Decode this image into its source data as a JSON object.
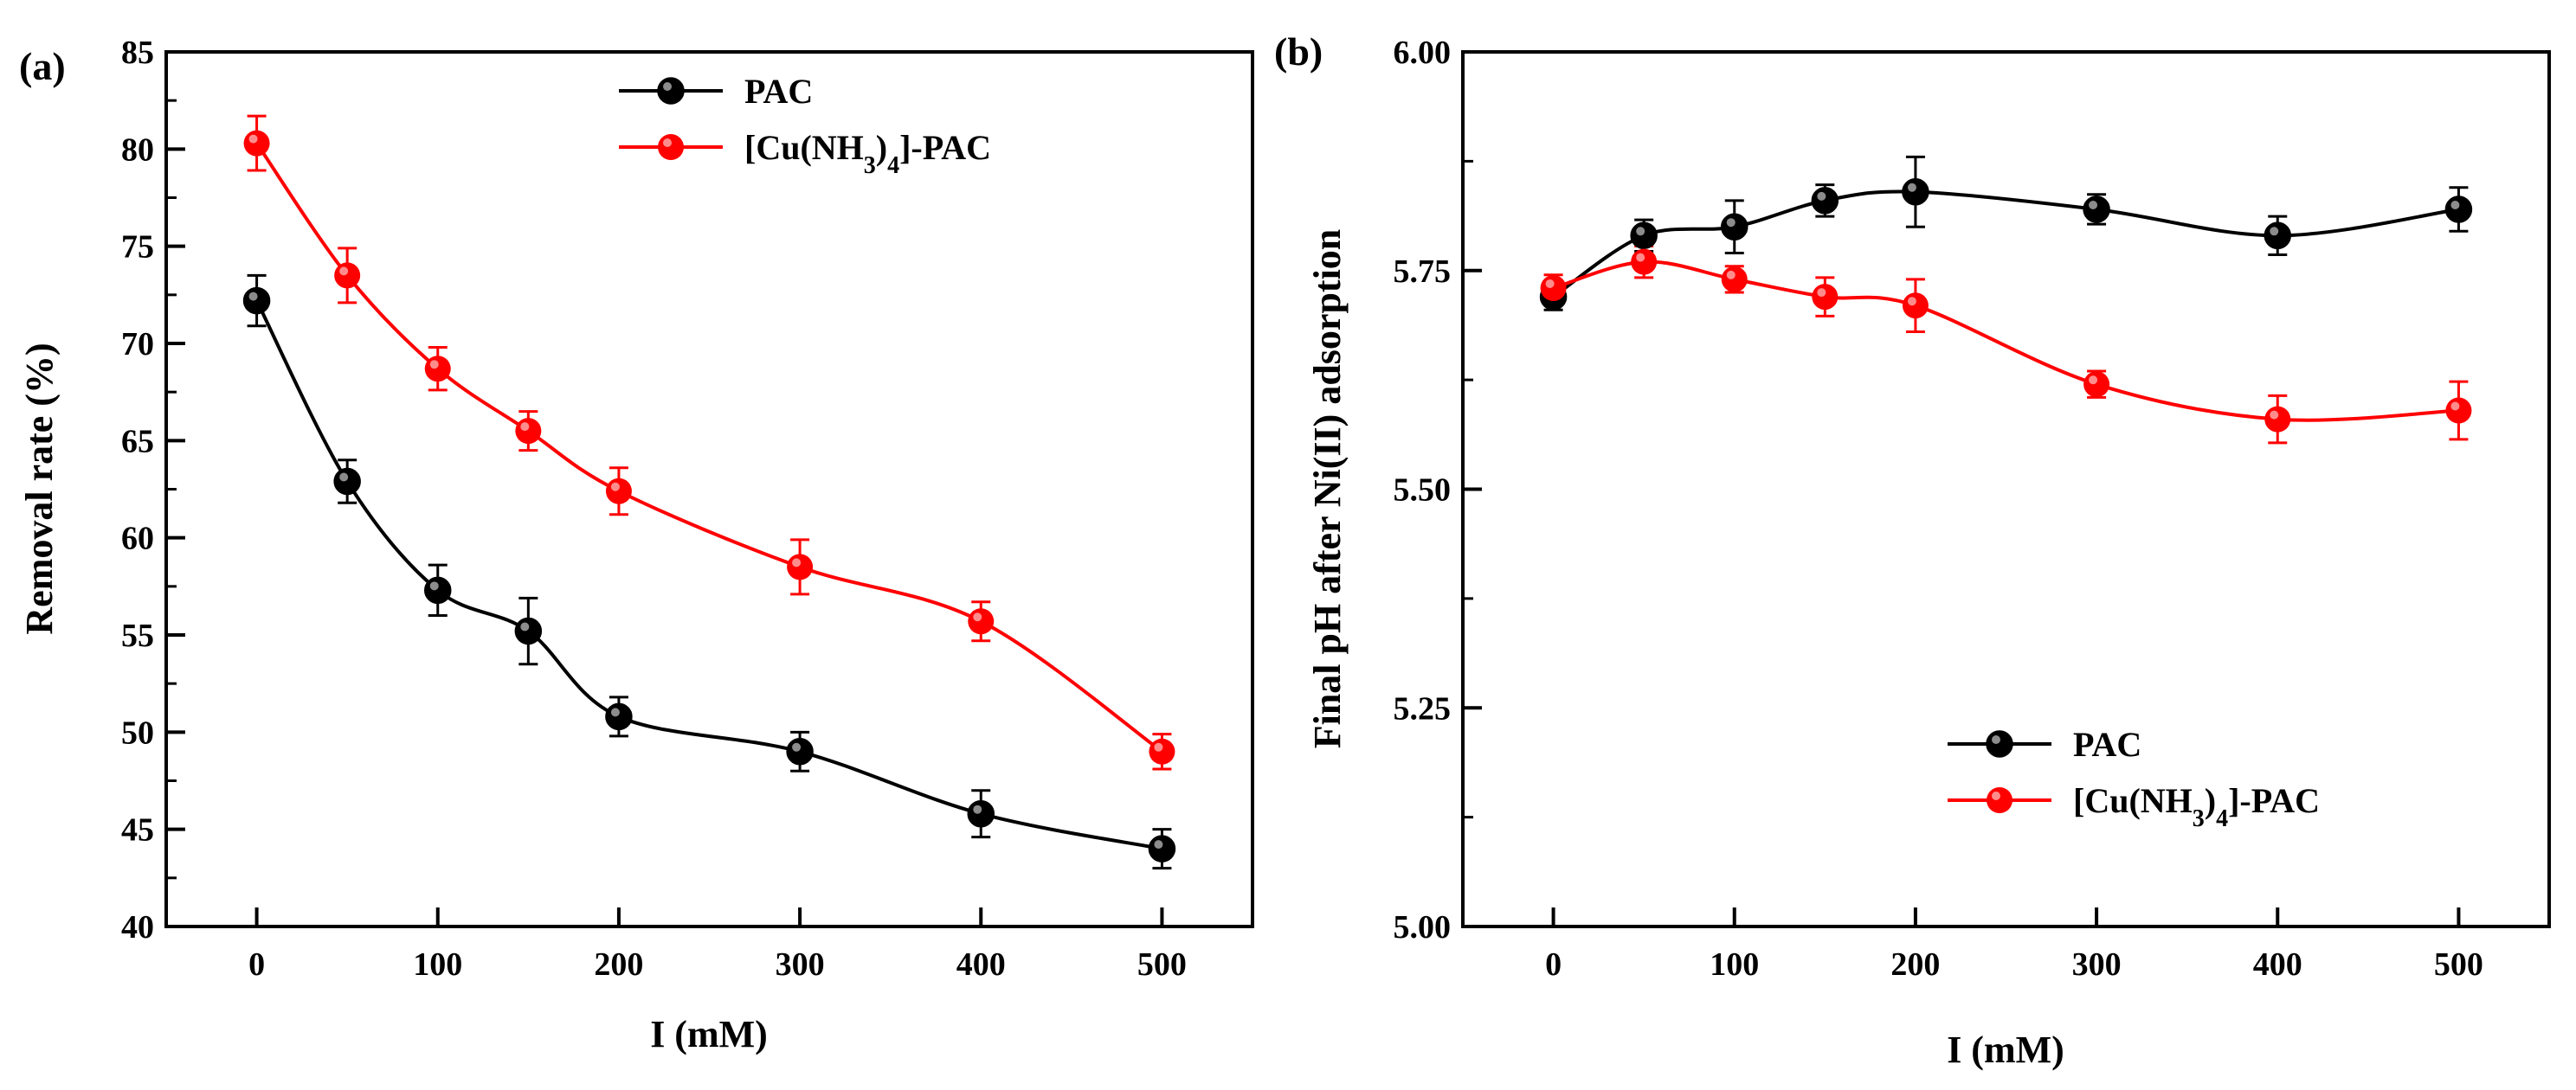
{
  "chart_data": [
    {
      "panel": "(a)",
      "type": "line",
      "smooth": true,
      "error_bars": true,
      "xlabel": "I (mM)",
      "ylabel": "Removal rate (%)",
      "x": [
        0,
        50,
        100,
        150,
        200,
        300,
        400,
        500
      ],
      "xlim": [
        -50,
        550
      ],
      "ylim": [
        40,
        85
      ],
      "xticks": [
        0,
        100,
        200,
        300,
        400,
        500
      ],
      "yticks": [
        40,
        45,
        50,
        55,
        60,
        65,
        70,
        75,
        80,
        85
      ],
      "legend_position": "top-right",
      "series": [
        {
          "name": "PAC",
          "name_base": "PAC",
          "name_sub_a": "",
          "name_mid": "",
          "name_sub_b": "",
          "name_tail": "",
          "color": "#000000",
          "values": [
            72.2,
            62.9,
            57.3,
            55.2,
            50.8,
            49.0,
            45.8,
            44.0
          ],
          "errors": [
            1.3,
            1.1,
            1.3,
            1.7,
            1.0,
            1.0,
            1.2,
            1.0
          ]
        },
        {
          "name": "[Cu(NH3)4]-PAC",
          "name_base": "[Cu(NH",
          "name_sub_a": "3",
          "name_mid": ")",
          "name_sub_b": "4",
          "name_tail": "]-PAC",
          "color": "#ff0000",
          "values": [
            80.3,
            73.5,
            68.7,
            65.5,
            62.4,
            58.5,
            55.7,
            49.0
          ],
          "errors": [
            1.4,
            1.4,
            1.1,
            1.0,
            1.2,
            1.4,
            1.0,
            0.9
          ]
        }
      ]
    },
    {
      "panel": "(b)",
      "type": "line",
      "smooth": true,
      "error_bars": true,
      "xlabel": "I (mM)",
      "ylabel": "Final pH after Ni(II) adsorption",
      "x": [
        0,
        50,
        100,
        150,
        200,
        300,
        400,
        500
      ],
      "xlim": [
        -50,
        550
      ],
      "ylim": [
        5.0,
        6.0
      ],
      "xticks": [
        0,
        100,
        200,
        300,
        400,
        500
      ],
      "yticks": [
        5.0,
        5.25,
        5.5,
        5.75,
        6.0
      ],
      "ytick_labels": [
        "5.00",
        "5.25",
        "5.50",
        "5.75",
        "6.00"
      ],
      "legend_position": "bottom-right",
      "series": [
        {
          "name": "PAC",
          "name_base": "PAC",
          "name_sub_a": "",
          "name_mid": "",
          "name_sub_b": "",
          "name_tail": "",
          "color": "#000000",
          "values": [
            5.72,
            5.79,
            5.8,
            5.83,
            5.84,
            5.82,
            5.79,
            5.82
          ],
          "errors": [
            0.015,
            0.018,
            0.03,
            0.018,
            0.04,
            0.017,
            0.022,
            0.025
          ]
        },
        {
          "name": "[Cu(NH3)4]-PAC",
          "name_base": "[Cu(NH",
          "name_sub_a": "3",
          "name_mid": ")",
          "name_sub_b": "4",
          "name_tail": "]-PAC",
          "color": "#ff0000",
          "values": [
            5.73,
            5.76,
            5.74,
            5.72,
            5.71,
            5.62,
            5.58,
            5.59
          ],
          "errors": [
            0.015,
            0.018,
            0.015,
            0.022,
            0.03,
            0.015,
            0.027,
            0.033
          ]
        }
      ]
    }
  ]
}
